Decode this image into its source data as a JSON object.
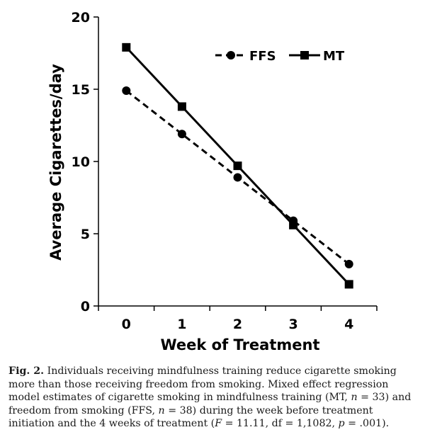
{
  "chart_data": {
    "type": "line",
    "xlabel": "Week of Treatment",
    "ylabel": "Average Cigarettes/day",
    "x": [
      0,
      1,
      2,
      3,
      4
    ],
    "x_tick_labels": [
      "0",
      "1",
      "2",
      "3",
      "4"
    ],
    "y_tick_labels": [
      "0",
      "5",
      "10",
      "15",
      "20"
    ],
    "ylim": [
      0,
      20
    ],
    "xlim": [
      -0.5,
      4.5
    ],
    "grid": false,
    "legend_position": "top-right",
    "series": [
      {
        "name": "FFS",
        "style": "dashed",
        "marker": "circle",
        "color": "#000000",
        "values": [
          14.9,
          11.9,
          8.9,
          5.9,
          2.9
        ]
      },
      {
        "name": "MT",
        "style": "solid",
        "marker": "square",
        "color": "#000000",
        "values": [
          17.9,
          13.8,
          9.7,
          5.6,
          1.5
        ]
      }
    ]
  },
  "caption": {
    "label": "Fig. 2.",
    "part1": "Individuals receiving mindfulness training reduce cigarette smoking more than those receiving freedom from smoking. Mixed effect regression model estimates of cigarette smoking in mindfulness training (MT, ",
    "n1_var": "n",
    "n1_val": " = 33) and freedom from smoking (FFS, ",
    "n2_var": "n",
    "n2_val": " = 38) during the week before treatment initiation and the 4 weeks of treatment (",
    "f_var": "F",
    "f_val": " = 11.11, df = 1,1082, ",
    "p_var": "p",
    "p_val": " = .001)."
  }
}
